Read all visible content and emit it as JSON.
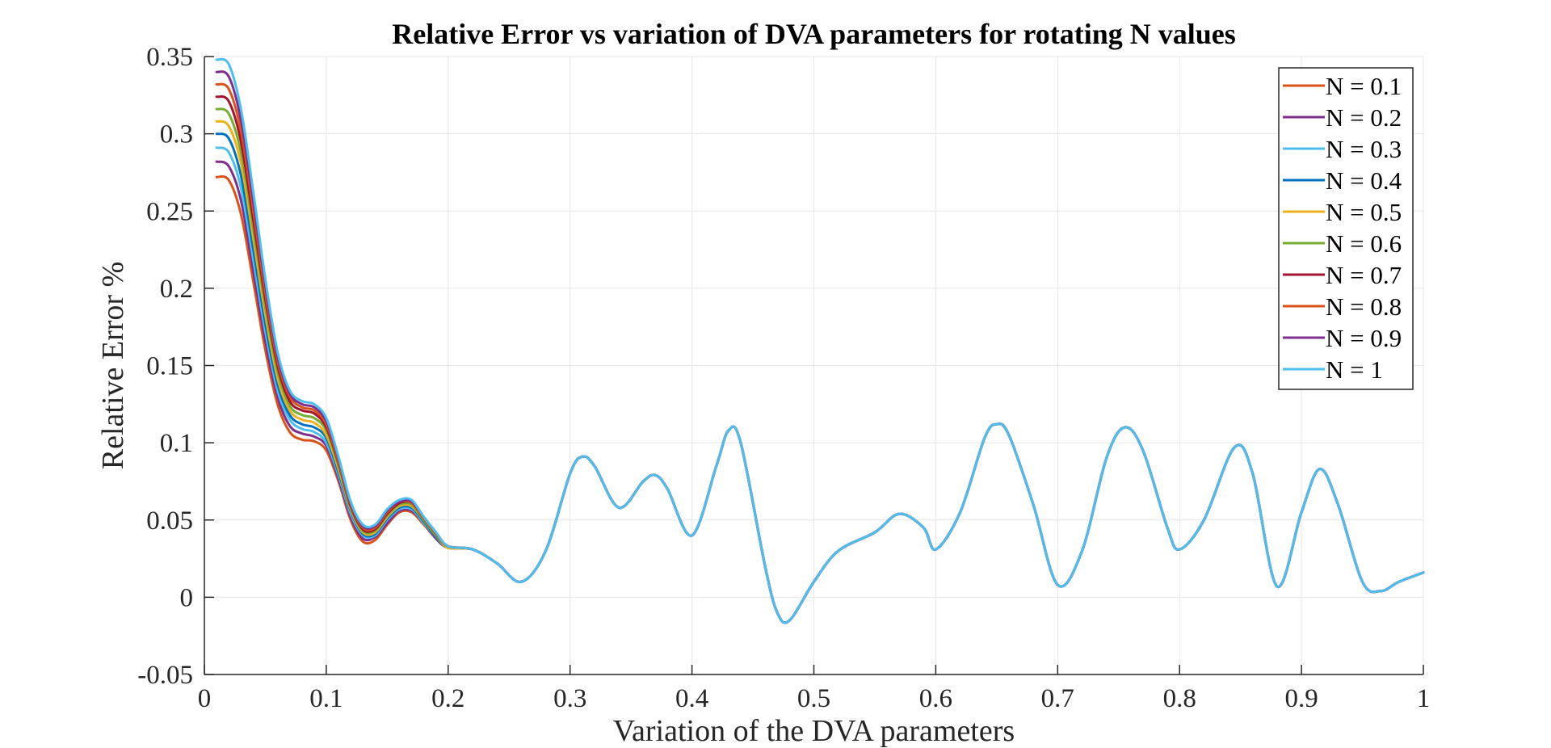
{
  "chart_data": {
    "type": "line",
    "title": "Relative Error vs variation of DVA parameters for rotating N values",
    "xlabel": "Variation of the DVA parameters",
    "ylabel": "Relative Error %",
    "xlim": [
      0,
      1
    ],
    "ylim": [
      -0.05,
      0.35
    ],
    "xticks": [
      0,
      0.1,
      0.2,
      0.3,
      0.4,
      0.5,
      0.6,
      0.7,
      0.8,
      0.9,
      1
    ],
    "xtick_labels": [
      "0",
      "0.1",
      "0.2",
      "0.3",
      "0.4",
      "0.5",
      "0.6",
      "0.7",
      "0.8",
      "0.9",
      "1"
    ],
    "yticks": [
      -0.05,
      0,
      0.05,
      0.1,
      0.15,
      0.2,
      0.25,
      0.3,
      0.35
    ],
    "ytick_labels": [
      "-0.05",
      "0",
      "0.05",
      "0.1",
      "0.15",
      "0.2",
      "0.25",
      "0.3",
      "0.35"
    ],
    "grid": true,
    "legend_position": "top-right",
    "x": [
      0.01,
      0.02,
      0.03,
      0.04,
      0.05,
      0.06,
      0.07,
      0.08,
      0.09,
      0.1,
      0.11,
      0.12,
      0.13,
      0.14,
      0.15,
      0.16,
      0.17,
      0.18,
      0.19,
      0.2,
      0.22,
      0.24,
      0.26,
      0.28,
      0.3,
      0.31,
      0.32,
      0.34,
      0.36,
      0.37,
      0.38,
      0.4,
      0.42,
      0.43,
      0.44,
      0.46,
      0.47,
      0.48,
      0.5,
      0.52,
      0.55,
      0.57,
      0.59,
      0.6,
      0.62,
      0.64,
      0.65,
      0.66,
      0.68,
      0.7,
      0.72,
      0.74,
      0.755,
      0.77,
      0.79,
      0.8,
      0.82,
      0.845,
      0.86,
      0.88,
      0.9,
      0.915,
      0.93,
      0.95,
      0.965,
      0.98,
      1.0
    ],
    "series": [
      {
        "name": "N = 0.1",
        "color": "#D95319",
        "values": [
          0.272,
          0.27,
          0.248,
          0.205,
          0.16,
          0.125,
          0.107,
          0.102,
          0.101,
          0.095,
          0.075,
          0.05,
          0.036,
          0.037,
          0.047,
          0.055,
          0.055,
          0.047,
          0.038,
          0.032,
          0.031,
          0.022,
          0.01,
          0.03,
          0.08,
          0.091,
          0.085,
          0.058,
          0.075,
          0.079,
          0.07,
          0.04,
          0.085,
          0.108,
          0.1,
          0.02,
          -0.01,
          -0.015,
          0.01,
          0.03,
          0.042,
          0.054,
          0.045,
          0.031,
          0.055,
          0.103,
          0.112,
          0.105,
          0.06,
          0.008,
          0.03,
          0.09,
          0.11,
          0.095,
          0.045,
          0.031,
          0.05,
          0.097,
          0.08,
          0.007,
          0.055,
          0.083,
          0.06,
          0.01,
          0.004,
          0.01,
          0.016
        ]
      },
      {
        "name": "N = 0.2",
        "color": "#7E2F8E",
        "values": [
          0.282,
          0.279,
          0.257,
          0.212,
          0.166,
          0.13,
          0.111,
          0.106,
          0.104,
          0.098,
          0.077,
          0.052,
          0.038,
          0.039,
          0.048,
          0.056,
          0.056,
          0.048,
          0.038,
          0.032,
          0.031,
          0.022,
          0.01,
          0.03,
          0.08,
          0.091,
          0.085,
          0.058,
          0.075,
          0.079,
          0.07,
          0.04,
          0.085,
          0.108,
          0.1,
          0.02,
          -0.01,
          -0.015,
          0.01,
          0.03,
          0.042,
          0.054,
          0.045,
          0.031,
          0.055,
          0.103,
          0.112,
          0.105,
          0.06,
          0.008,
          0.03,
          0.09,
          0.11,
          0.095,
          0.045,
          0.031,
          0.05,
          0.097,
          0.08,
          0.007,
          0.055,
          0.083,
          0.06,
          0.01,
          0.004,
          0.01,
          0.016
        ]
      },
      {
        "name": "N = 0.3",
        "color": "#4DBEEE",
        "values": [
          0.291,
          0.288,
          0.265,
          0.219,
          0.172,
          0.134,
          0.115,
          0.109,
          0.107,
          0.1,
          0.079,
          0.054,
          0.04,
          0.04,
          0.05,
          0.057,
          0.057,
          0.048,
          0.039,
          0.032,
          0.031,
          0.022,
          0.01,
          0.03,
          0.08,
          0.091,
          0.085,
          0.058,
          0.075,
          0.079,
          0.07,
          0.04,
          0.085,
          0.108,
          0.1,
          0.02,
          -0.01,
          -0.015,
          0.01,
          0.03,
          0.042,
          0.054,
          0.045,
          0.031,
          0.055,
          0.103,
          0.112,
          0.105,
          0.06,
          0.008,
          0.03,
          0.09,
          0.11,
          0.095,
          0.045,
          0.031,
          0.05,
          0.097,
          0.08,
          0.007,
          0.055,
          0.083,
          0.06,
          0.01,
          0.004,
          0.01,
          0.016
        ]
      },
      {
        "name": "N = 0.4",
        "color": "#0072BD",
        "values": [
          0.3,
          0.297,
          0.273,
          0.226,
          0.177,
          0.138,
          0.118,
          0.112,
          0.11,
          0.103,
          0.081,
          0.056,
          0.041,
          0.041,
          0.051,
          0.058,
          0.058,
          0.049,
          0.039,
          0.032,
          0.031,
          0.022,
          0.01,
          0.03,
          0.08,
          0.091,
          0.085,
          0.058,
          0.075,
          0.079,
          0.07,
          0.04,
          0.085,
          0.108,
          0.1,
          0.02,
          -0.01,
          -0.015,
          0.01,
          0.03,
          0.042,
          0.054,
          0.045,
          0.031,
          0.055,
          0.103,
          0.112,
          0.105,
          0.06,
          0.008,
          0.03,
          0.09,
          0.11,
          0.095,
          0.045,
          0.031,
          0.05,
          0.097,
          0.08,
          0.007,
          0.055,
          0.083,
          0.06,
          0.01,
          0.004,
          0.01,
          0.016
        ]
      },
      {
        "name": "N = 0.5",
        "color": "#EDB120",
        "values": [
          0.308,
          0.305,
          0.281,
          0.233,
          0.183,
          0.142,
          0.121,
          0.115,
          0.113,
          0.105,
          0.083,
          0.057,
          0.042,
          0.042,
          0.052,
          0.059,
          0.059,
          0.05,
          0.04,
          0.032,
          0.031,
          0.022,
          0.01,
          0.03,
          0.08,
          0.091,
          0.085,
          0.058,
          0.075,
          0.079,
          0.07,
          0.04,
          0.085,
          0.108,
          0.1,
          0.02,
          -0.01,
          -0.015,
          0.01,
          0.03,
          0.042,
          0.054,
          0.045,
          0.031,
          0.055,
          0.103,
          0.112,
          0.105,
          0.06,
          0.008,
          0.03,
          0.09,
          0.11,
          0.095,
          0.045,
          0.031,
          0.05,
          0.097,
          0.08,
          0.007,
          0.055,
          0.083,
          0.06,
          0.01,
          0.004,
          0.01,
          0.016
        ]
      },
      {
        "name": "N = 0.6",
        "color": "#77AC30",
        "values": [
          0.316,
          0.313,
          0.288,
          0.239,
          0.188,
          0.146,
          0.124,
          0.118,
          0.116,
          0.108,
          0.085,
          0.058,
          0.043,
          0.043,
          0.053,
          0.06,
          0.06,
          0.05,
          0.04,
          0.033,
          0.031,
          0.022,
          0.01,
          0.03,
          0.08,
          0.091,
          0.085,
          0.058,
          0.075,
          0.079,
          0.07,
          0.04,
          0.085,
          0.108,
          0.1,
          0.02,
          -0.01,
          -0.015,
          0.01,
          0.03,
          0.042,
          0.054,
          0.045,
          0.031,
          0.055,
          0.103,
          0.112,
          0.105,
          0.06,
          0.008,
          0.03,
          0.09,
          0.11,
          0.095,
          0.045,
          0.031,
          0.05,
          0.097,
          0.08,
          0.007,
          0.055,
          0.083,
          0.06,
          0.01,
          0.004,
          0.01,
          0.016
        ]
      },
      {
        "name": "N = 0.7",
        "color": "#A2142F",
        "values": [
          0.324,
          0.321,
          0.295,
          0.245,
          0.193,
          0.15,
          0.127,
          0.121,
          0.119,
          0.11,
          0.087,
          0.059,
          0.044,
          0.044,
          0.054,
          0.061,
          0.061,
          0.051,
          0.041,
          0.033,
          0.031,
          0.022,
          0.01,
          0.03,
          0.08,
          0.091,
          0.085,
          0.058,
          0.075,
          0.079,
          0.07,
          0.04,
          0.085,
          0.108,
          0.1,
          0.02,
          -0.01,
          -0.015,
          0.01,
          0.03,
          0.042,
          0.054,
          0.045,
          0.031,
          0.055,
          0.103,
          0.112,
          0.105,
          0.06,
          0.008,
          0.03,
          0.09,
          0.11,
          0.095,
          0.045,
          0.031,
          0.05,
          0.097,
          0.08,
          0.007,
          0.055,
          0.083,
          0.06,
          0.01,
          0.004,
          0.01,
          0.016
        ]
      },
      {
        "name": "N = 0.8",
        "color": "#D95319",
        "values": [
          0.332,
          0.329,
          0.302,
          0.251,
          0.197,
          0.153,
          0.13,
          0.123,
          0.121,
          0.112,
          0.088,
          0.06,
          0.045,
          0.045,
          0.055,
          0.062,
          0.061,
          0.051,
          0.041,
          0.033,
          0.031,
          0.022,
          0.01,
          0.03,
          0.08,
          0.091,
          0.085,
          0.058,
          0.075,
          0.079,
          0.07,
          0.04,
          0.085,
          0.108,
          0.1,
          0.02,
          -0.01,
          -0.015,
          0.01,
          0.03,
          0.042,
          0.054,
          0.045,
          0.031,
          0.055,
          0.103,
          0.112,
          0.105,
          0.06,
          0.008,
          0.03,
          0.09,
          0.11,
          0.095,
          0.045,
          0.031,
          0.05,
          0.097,
          0.08,
          0.007,
          0.055,
          0.083,
          0.06,
          0.01,
          0.004,
          0.01,
          0.016
        ]
      },
      {
        "name": "N = 0.9",
        "color": "#7E2F8E",
        "values": [
          0.34,
          0.337,
          0.309,
          0.257,
          0.202,
          0.156,
          0.132,
          0.125,
          0.123,
          0.114,
          0.09,
          0.061,
          0.046,
          0.046,
          0.056,
          0.062,
          0.062,
          0.052,
          0.042,
          0.033,
          0.031,
          0.022,
          0.01,
          0.03,
          0.08,
          0.091,
          0.085,
          0.058,
          0.075,
          0.079,
          0.07,
          0.04,
          0.085,
          0.108,
          0.1,
          0.02,
          -0.01,
          -0.015,
          0.01,
          0.03,
          0.042,
          0.054,
          0.045,
          0.031,
          0.055,
          0.103,
          0.112,
          0.105,
          0.06,
          0.008,
          0.03,
          0.09,
          0.11,
          0.095,
          0.045,
          0.031,
          0.05,
          0.097,
          0.08,
          0.007,
          0.055,
          0.083,
          0.06,
          0.01,
          0.004,
          0.01,
          0.016
        ]
      },
      {
        "name": "N = 1",
        "color": "#4DBEEE",
        "values": [
          0.348,
          0.345,
          0.316,
          0.263,
          0.206,
          0.159,
          0.134,
          0.127,
          0.125,
          0.116,
          0.091,
          0.062,
          0.047,
          0.047,
          0.057,
          0.063,
          0.063,
          0.052,
          0.042,
          0.033,
          0.031,
          0.022,
          0.01,
          0.03,
          0.08,
          0.091,
          0.085,
          0.058,
          0.075,
          0.079,
          0.07,
          0.04,
          0.085,
          0.108,
          0.1,
          0.02,
          -0.01,
          -0.015,
          0.01,
          0.03,
          0.042,
          0.054,
          0.045,
          0.031,
          0.055,
          0.103,
          0.112,
          0.105,
          0.06,
          0.008,
          0.03,
          0.09,
          0.11,
          0.095,
          0.045,
          0.031,
          0.05,
          0.097,
          0.08,
          0.007,
          0.055,
          0.083,
          0.06,
          0.01,
          0.004,
          0.01,
          0.016
        ]
      }
    ]
  }
}
